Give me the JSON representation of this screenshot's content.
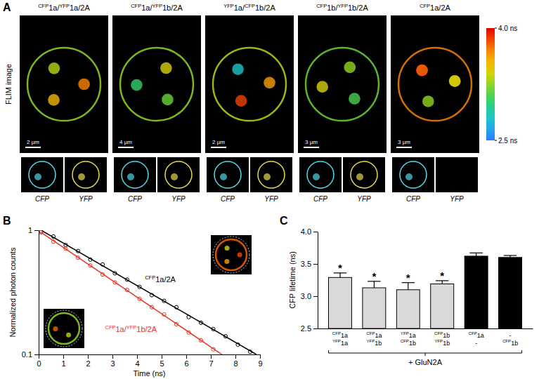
{
  "chart_data": [
    {
      "type": "image",
      "panel": "A",
      "row_label": "FLIM image",
      "titles": [
        "CFP1a/YFP1a/2A",
        "CFP1a/YFP1b/2A",
        "YFP1a/CFP1b/2A",
        "CFP1b/YFP1b/2A",
        "CFP1a/2A"
      ],
      "scale_bars": [
        "2 µm",
        "4 µm",
        "2 µm",
        "3 µm",
        "3 µm"
      ],
      "channel_labels": [
        "CFP",
        "YFP"
      ],
      "colorbar": {
        "range": [
          2.5,
          4.0
        ],
        "ticks": [
          {
            "value": 4.0,
            "label": "4.0 ns"
          },
          {
            "value": 2.5,
            "label": "2.5 ns"
          }
        ]
      }
    },
    {
      "type": "line",
      "panel": "B",
      "x_label": "Time (ns)",
      "y_label": "Normalized photon counts",
      "log": "y",
      "xlim": [
        0,
        9
      ],
      "ylim": [
        0.1,
        1
      ],
      "xticks": [
        0,
        1,
        2,
        3,
        4,
        5,
        6,
        7,
        8,
        9
      ],
      "yticks": [
        0.1,
        1
      ],
      "series": [
        {
          "name": "CFP1a/2A",
          "color": "#000000",
          "type": "scatter",
          "marker": "circle",
          "x": [
            0.1,
            0.6,
            1.1,
            1.6,
            2.1,
            2.6,
            3.1,
            3.6,
            4.1,
            4.6,
            5.1,
            5.6,
            6.1,
            6.6,
            7.1,
            7.6,
            8.1,
            8.6
          ],
          "values": [
            0.98,
            0.89,
            0.76,
            0.68,
            0.58,
            0.53,
            0.45,
            0.4,
            0.35,
            0.3,
            0.27,
            0.24,
            0.2,
            0.18,
            0.16,
            0.14,
            0.12,
            0.105
          ]
        },
        {
          "color": "#000000",
          "type": "line",
          "x": [
            0.1,
            8.85
          ],
          "values": [
            1.0,
            0.1
          ]
        },
        {
          "name": "CFP1a/YFP1b/2A",
          "color": "#e8321e",
          "type": "scatter",
          "marker": "circle",
          "x": [
            0.1,
            0.6,
            1.1,
            1.6,
            2.1,
            2.6,
            3.1,
            3.6,
            4.1,
            4.6,
            5.1,
            5.6,
            6.1,
            6.6,
            7.1
          ],
          "values": [
            0.96,
            0.81,
            0.71,
            0.6,
            0.52,
            0.44,
            0.38,
            0.33,
            0.28,
            0.24,
            0.21,
            0.175,
            0.15,
            0.13,
            0.11
          ]
        },
        {
          "color": "#e8321e",
          "type": "line",
          "x": [
            0.1,
            7.45
          ],
          "values": [
            0.96,
            0.1
          ]
        }
      ]
    },
    {
      "type": "bar",
      "panel": "C",
      "y_label": "CFP lifetime (ns)",
      "categories": [
        [
          "CFP1a",
          "YFP1a"
        ],
        [
          "CFP1a",
          "YFP1b"
        ],
        [
          "YFP1a",
          "CFP1b"
        ],
        [
          "CFP1b",
          "YFP1b"
        ],
        [
          "CFP1a",
          "-"
        ],
        [
          "-",
          "CFP1b"
        ]
      ],
      "values": [
        3.29,
        3.13,
        3.1,
        3.19,
        3.62,
        3.6
      ],
      "errors": [
        0.07,
        0.1,
        0.11,
        0.05,
        0.05,
        0.03
      ],
      "colors": [
        "#d9d9d9",
        "#d9d9d9",
        "#d9d9d9",
        "#d9d9d9",
        "#000000",
        "#000000"
      ],
      "ylim": [
        2.5,
        4.0
      ],
      "yticks": [
        {
          "value": 2.5,
          "label": "2.5"
        },
        {
          "value": 3.0,
          "label": "3.0"
        },
        {
          "value": 3.5,
          "label": "3.5"
        },
        {
          "value": 4.0,
          "label": "4.0"
        }
      ],
      "annotations": [
        {
          "text": "*",
          "index": 0
        },
        {
          "text": "*",
          "index": 1
        },
        {
          "text": "*",
          "index": 2
        },
        {
          "text": "*",
          "index": 3
        }
      ],
      "group_label": "+ GluN2A"
    }
  ]
}
